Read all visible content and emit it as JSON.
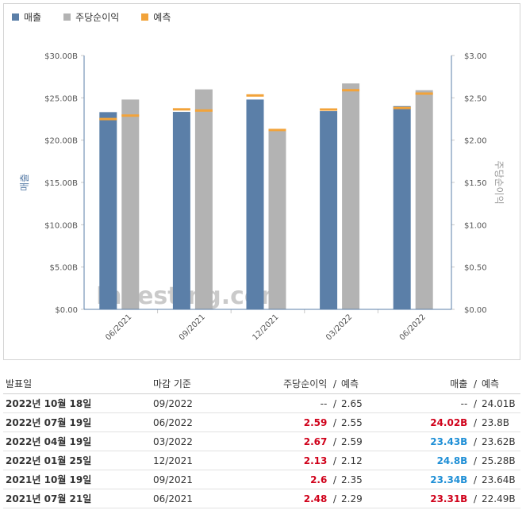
{
  "legend": [
    {
      "label": "매출",
      "color": "#5b7fa8"
    },
    {
      "label": "주당순이익",
      "color": "#b3b3b3"
    },
    {
      "label": "예측",
      "color": "#f2a33a"
    }
  ],
  "chart_data": {
    "type": "bar",
    "categories": [
      "06/2021",
      "09/2021",
      "12/2021",
      "03/2022",
      "06/2022"
    ],
    "series": [
      {
        "name": "매출",
        "values": [
          23.31,
          23.34,
          24.8,
          23.43,
          24.02
        ],
        "axis": "left",
        "color": "#5b7fa8"
      },
      {
        "name": "주당순이익",
        "values": [
          2.48,
          2.6,
          2.13,
          2.67,
          2.59
        ],
        "axis": "right",
        "color": "#b3b3b3"
      }
    ],
    "forecast": {
      "name": "예측",
      "color": "#f2a33a",
      "revenue": [
        22.49,
        23.64,
        25.28,
        23.62,
        23.8
      ],
      "eps": [
        2.29,
        2.35,
        2.12,
        2.59,
        2.55
      ]
    },
    "ylabel_left": "매출",
    "ylabel_right": "주당순이익",
    "ylim_left": [
      0,
      30
    ],
    "ylim_right": [
      0,
      3
    ],
    "yticks_left": [
      "$0.00",
      "$5.00B",
      "$10.00B",
      "$15.00B",
      "$20.00B",
      "$25.00B",
      "$30.00B"
    ],
    "yticks_right": [
      "$0.00",
      "$0.50",
      "$1.00",
      "$1.50",
      "$2.00",
      "$2.50",
      "$3.00"
    ],
    "watermark": "Investing.com",
    "legend_position": "top-left"
  },
  "table": {
    "headers": {
      "date": "발표일",
      "period": "마감 기준",
      "eps": "주당순이익",
      "forecast1": "예측",
      "revenue": "매출",
      "forecast2": "예측"
    },
    "rows": [
      {
        "date": "2022년 10월 18일",
        "period": "09/2022",
        "eps": "--",
        "eps_status": "neutral",
        "eps_forecast": "2.65",
        "revenue": "--",
        "rev_status": "neutral",
        "rev_forecast": "24.01B"
      },
      {
        "date": "2022년 07월 19일",
        "period": "06/2022",
        "eps": "2.59",
        "eps_status": "up",
        "eps_forecast": "2.55",
        "revenue": "24.02B",
        "rev_status": "up",
        "rev_forecast": "23.8B"
      },
      {
        "date": "2022년 04월 19일",
        "period": "03/2022",
        "eps": "2.67",
        "eps_status": "up",
        "eps_forecast": "2.59",
        "revenue": "23.43B",
        "rev_status": "down",
        "rev_forecast": "23.62B"
      },
      {
        "date": "2022년 01월 25일",
        "period": "12/2021",
        "eps": "2.13",
        "eps_status": "up",
        "eps_forecast": "2.12",
        "revenue": "24.8B",
        "rev_status": "down",
        "rev_forecast": "25.28B"
      },
      {
        "date": "2021년 10월 19일",
        "period": "09/2021",
        "eps": "2.6",
        "eps_status": "up",
        "eps_forecast": "2.35",
        "revenue": "23.34B",
        "rev_status": "down",
        "rev_forecast": "23.64B"
      },
      {
        "date": "2021년 07월 21일",
        "period": "06/2021",
        "eps": "2.48",
        "eps_status": "up",
        "eps_forecast": "2.29",
        "revenue": "23.31B",
        "rev_status": "up",
        "rev_forecast": "22.49B"
      }
    ]
  }
}
